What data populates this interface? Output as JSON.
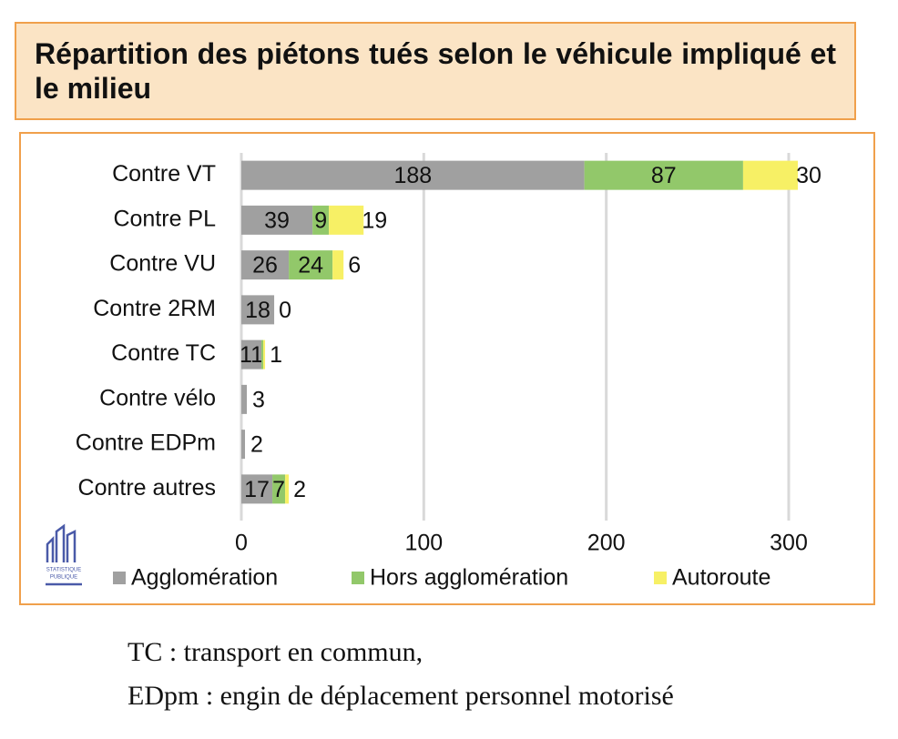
{
  "chart_data": {
    "type": "stacked-barh",
    "title": "Répartition des piétons tués selon le véhicule impliqué et le milieu",
    "categories": [
      "Contre VT",
      "Contre PL",
      "Contre VU",
      "Contre 2RM",
      "Contre TC",
      "Contre vélo",
      "Contre EDPm",
      "Contre autres"
    ],
    "series": [
      {
        "name": "Agglomération",
        "color": "#a0a0a0",
        "values": [
          188,
          39,
          26,
          18,
          11,
          3,
          2,
          17
        ],
        "value_labels": [
          "188",
          "39",
          "26",
          "18",
          "11",
          "3",
          "2",
          "17"
        ]
      },
      {
        "name": "Hors agglomération",
        "color": "#92c86a",
        "values": [
          87,
          9,
          24,
          0,
          1,
          0,
          0,
          7
        ],
        "value_labels": [
          "87",
          "9",
          "24",
          null,
          null,
          null,
          null,
          "7"
        ]
      },
      {
        "name": "Autoroute",
        "color": "#f7f065",
        "values": [
          30,
          19,
          6,
          0,
          1,
          0,
          0,
          2
        ],
        "value_labels": [
          "30",
          "19",
          "6",
          "0",
          "1",
          null,
          null,
          "2"
        ]
      }
    ],
    "xlim": [
      0,
      300
    ],
    "xticks": [
      0,
      100,
      200,
      300
    ],
    "grid": true,
    "legend": "bottom",
    "logo": [
      "STATISTIQUE",
      "PUBLIQUE"
    ]
  },
  "notes": [
    "TC : transport en commun,",
    "EDpm : engin de déplacement personnel motorisé"
  ]
}
